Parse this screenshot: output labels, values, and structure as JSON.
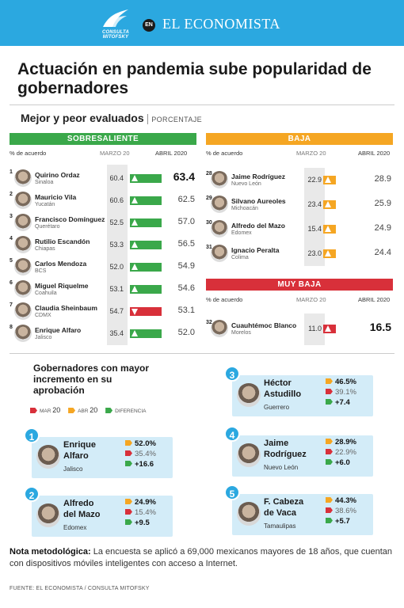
{
  "header": {
    "logo_text": "CONSULTA MITOFSKY",
    "en_badge": "EN",
    "brand": "EL ECONOMISTA",
    "color": "#2ba8e0"
  },
  "title": "Actuación en pandemia sube popularidad de gobernadores",
  "subtitle": {
    "main": "Mejor y peor evaluados",
    "unit": "PORCENTAJE"
  },
  "columns": {
    "agree": "% de acuerdo",
    "march": "MARZO 20",
    "april": "ABRIL 2020"
  },
  "colors": {
    "green": "#3aa84a",
    "orange": "#f5a623",
    "red": "#d8303a",
    "blue": "#2ba8e0"
  },
  "tables": {
    "sobresaliente": {
      "label": "SOBRESALIENTE",
      "rows": [
        {
          "rank": "1",
          "name": "Quirino Ordaz",
          "state": "Sinaloa",
          "march": "60.4",
          "april": "63.4",
          "trend": "up"
        },
        {
          "rank": "2",
          "name": "Mauricio Vila",
          "state": "Yucatán",
          "march": "60.6",
          "april": "62.5",
          "trend": "up"
        },
        {
          "rank": "3",
          "name": "Francisco Domínguez",
          "state": "Querétaro",
          "march": "52.5",
          "april": "57.0",
          "trend": "up"
        },
        {
          "rank": "4",
          "name": "Rutilio Escandón",
          "state": "Chiapas",
          "march": "53.3",
          "april": "56.5",
          "trend": "up"
        },
        {
          "rank": "5",
          "name": "Carlos Mendoza",
          "state": "BCS",
          "march": "52.0",
          "april": "54.9",
          "trend": "up"
        },
        {
          "rank": "6",
          "name": "Miguel Riquelme",
          "state": "Coahuila",
          "march": "53.1",
          "april": "54.6",
          "trend": "up"
        },
        {
          "rank": "7",
          "name": "Claudia Sheinbaum",
          "state": "CDMX",
          "march": "54.7",
          "april": "53.1",
          "trend": "down"
        },
        {
          "rank": "8",
          "name": "Enrique Alfaro",
          "state": "Jalisco",
          "march": "35.4",
          "april": "52.0",
          "trend": "up"
        }
      ]
    },
    "baja": {
      "label": "BAJA",
      "rows": [
        {
          "rank": "28",
          "name": "Jaime Rodríguez",
          "state": "Nuevo León",
          "march": "22.9",
          "april": "28.9",
          "trend": "up"
        },
        {
          "rank": "29",
          "name": "Silvano Aureoles",
          "state": "Michoacán",
          "march": "23.4",
          "april": "25.9",
          "trend": "up"
        },
        {
          "rank": "30",
          "name": "Alfredo del Mazo",
          "state": "Edomex",
          "march": "15.4",
          "april": "24.9",
          "trend": "up"
        },
        {
          "rank": "31",
          "name": "Ignacio Peralta",
          "state": "Colima",
          "march": "23.0",
          "april": "24.4",
          "trend": "up"
        }
      ]
    },
    "muy_baja": {
      "label": "MUY BAJA",
      "rows": [
        {
          "rank": "32",
          "name": "Cuauhtémoc Blanco",
          "state": "Morelos",
          "march": "11.0",
          "april": "16.5",
          "trend": "up"
        }
      ]
    }
  },
  "increase": {
    "title": "Gobernadores con mayor incremento en su aprobación",
    "legend": {
      "mar": "MAR",
      "mar_yr": "20",
      "abr": "ABR",
      "abr_yr": "20",
      "dif": "DIFERENCIA"
    },
    "cards": [
      {
        "num": "1",
        "name_l1": "Enrique",
        "name_l2": "Alfaro",
        "state": "Jalisco",
        "april": "52.0%",
        "march": "35.4%",
        "diff": "+16.6"
      },
      {
        "num": "2",
        "name_l1": "Alfredo",
        "name_l2": "del Mazo",
        "state": "Edomex",
        "april": "24.9%",
        "march": "15.4%",
        "diff": "+9.5"
      },
      {
        "num": "3",
        "name_l1": "Héctor",
        "name_l2": "Astudillo",
        "state": "Guerrero",
        "april": "46.5%",
        "march": "39.1%",
        "diff": "+7.4"
      },
      {
        "num": "4",
        "name_l1": "Jaime",
        "name_l2": "Rodríguez",
        "state": "Nuevo León",
        "april": "28.9%",
        "march": "22.9%",
        "diff": "+6.0"
      },
      {
        "num": "5",
        "name_l1": "F. Cabeza",
        "name_l2": "de Vaca",
        "state": "Tamaulipas",
        "april": "44.3%",
        "march": "38.6%",
        "diff": "+5.7"
      }
    ]
  },
  "note": {
    "label": "Nota metodológica:",
    "text": " La encuesta se aplicó a 69,000 mexicanos mayores de 18 años, que cuentan con dispositivos móviles inteligentes con acceso a Internet."
  },
  "source": "FUENTE: EL ECONOMISTA / CONSULTA MITOFSKY"
}
